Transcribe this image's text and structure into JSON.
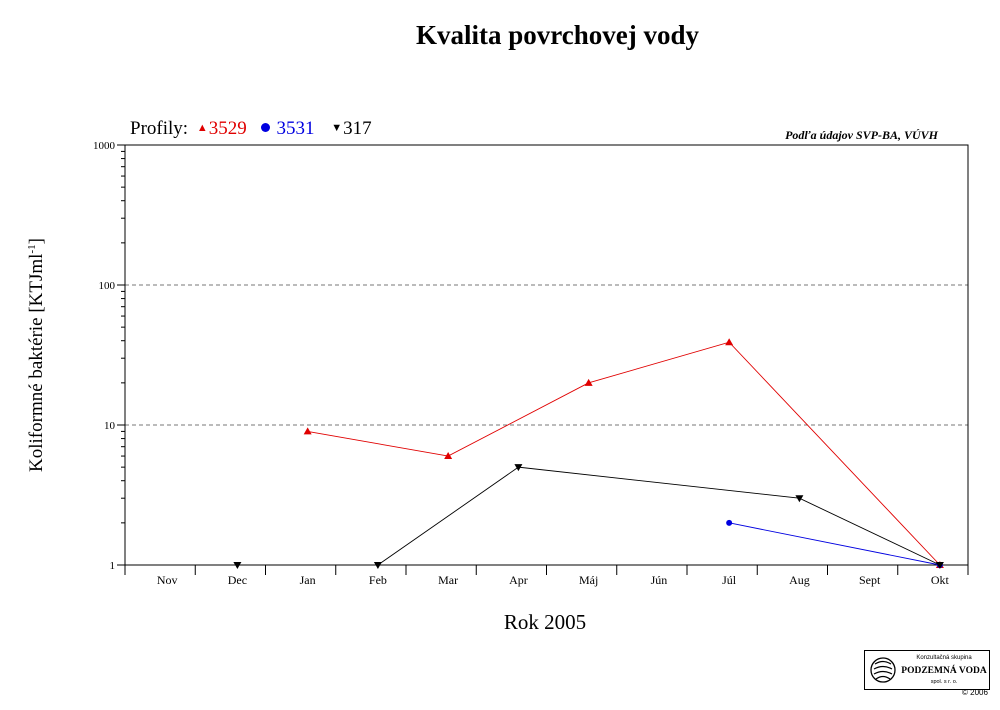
{
  "title": "Kvalita povrchovej vody",
  "source_note": "Podľa údajov SVP-BA, VÚVH",
  "legend": {
    "label": "Profily:",
    "items": [
      {
        "name": "3529",
        "color": "#e00000",
        "symbol": "triangle-up"
      },
      {
        "name": "3531",
        "color": "#0000e0",
        "symbol": "circle"
      },
      {
        "name": "317",
        "color": "#000000",
        "symbol": "triangle-down"
      }
    ]
  },
  "logo": {
    "line1": "Konzultačná skupina",
    "line2": "PODZEMNÁ VODA",
    "line3": "spol. s r. o.",
    "copyright": "© 2006"
  },
  "chart_data": {
    "type": "line",
    "xlabel": "Rok 2005",
    "ylabel_main": "Koliformné  baktérie [KTJml",
    "ylabel_sup": "-1",
    "ylabel_end": "]",
    "yscale": "log",
    "ylim": [
      1,
      1000
    ],
    "yticks": [
      1,
      10,
      100,
      1000
    ],
    "ytick_labels": [
      "1",
      "10",
      "100",
      "1000"
    ],
    "grid": "horizontal dashed at 10 and 100",
    "legend_position": "top-left",
    "categories": [
      "Nov",
      "Dec",
      "Jan",
      "Feb",
      "Mar",
      "Apr",
      "Máj",
      "Jún",
      "Júl",
      "Aug",
      "Sept",
      "Okt"
    ],
    "series": [
      {
        "name": "3529",
        "color": "#e00000",
        "marker": "triangle-up",
        "points": [
          [
            "Jan",
            9
          ],
          [
            "Mar",
            6
          ],
          [
            "Máj",
            20
          ],
          [
            "Júl",
            39
          ],
          [
            "Okt",
            1
          ]
        ]
      },
      {
        "name": "3531",
        "color": "#0000e0",
        "marker": "circle",
        "points": [
          [
            "Júl",
            2
          ],
          [
            "Okt",
            1
          ]
        ]
      },
      {
        "name": "317",
        "color": "#000000",
        "marker": "triangle-down",
        "points": [
          [
            "Dec",
            1
          ],
          [
            "Feb",
            1
          ],
          [
            "Apr",
            5
          ],
          [
            "Aug",
            3
          ],
          [
            "Okt",
            1
          ]
        ]
      }
    ]
  }
}
